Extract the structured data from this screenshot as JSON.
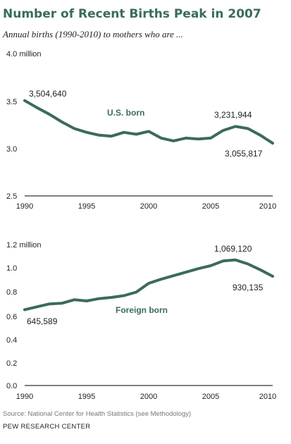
{
  "title": "Number of Recent Births Peak in 2007",
  "subtitle": "Annual births (1990-2010) to mothers who are ...",
  "source": "Source: National Center for Health Statistics (see Methodology)",
  "brand": "PEW RESEARCH CENTER",
  "colors": {
    "line": "#3a6b5c",
    "title": "#3a6b5c"
  },
  "chart_data": [
    {
      "type": "line",
      "x": [
        1990,
        1991,
        1992,
        1993,
        1994,
        1995,
        1996,
        1997,
        1998,
        1999,
        2000,
        2001,
        2002,
        2003,
        2004,
        2005,
        2006,
        2007,
        2008,
        2009,
        2010
      ],
      "series": [
        {
          "name": "U.S. born",
          "values": [
            3.5046,
            3.43,
            3.36,
            3.28,
            3.21,
            3.17,
            3.14,
            3.13,
            3.17,
            3.15,
            3.18,
            3.11,
            3.08,
            3.11,
            3.1,
            3.11,
            3.19,
            3.2319,
            3.21,
            3.14,
            3.0558
          ]
        }
      ],
      "ylim": [
        2.5,
        4.0
      ],
      "yticks": [
        "2.5",
        "3.0",
        "3.5",
        "4.0 million"
      ],
      "xticks": [
        "1990",
        "1995",
        "2000",
        "2005",
        "2010"
      ],
      "annotations": [
        "3,504,640",
        "3,231,944",
        "3,055,817"
      ]
    },
    {
      "type": "line",
      "x": [
        1990,
        1991,
        1992,
        1993,
        1994,
        1995,
        1996,
        1997,
        1998,
        1999,
        2000,
        2001,
        2002,
        2003,
        2004,
        2005,
        2006,
        2007,
        2008,
        2009,
        2010
      ],
      "series": [
        {
          "name": "Foreign born",
          "values": [
            0.6456,
            0.67,
            0.695,
            0.7,
            0.73,
            0.72,
            0.74,
            0.75,
            0.765,
            0.795,
            0.87,
            0.905,
            0.935,
            0.965,
            0.995,
            1.02,
            1.06,
            1.0691,
            1.035,
            0.985,
            0.9301
          ]
        }
      ],
      "ylim": [
        0.0,
        1.2
      ],
      "yticks": [
        "0.0",
        "0.2",
        "0.4",
        "0.6",
        "0.8",
        "1.0",
        "1.2 million"
      ],
      "xticks": [
        "1990",
        "1995",
        "2000",
        "2005",
        "2010"
      ],
      "annotations": [
        "645,589",
        "1,069,120",
        "930,135"
      ]
    }
  ]
}
